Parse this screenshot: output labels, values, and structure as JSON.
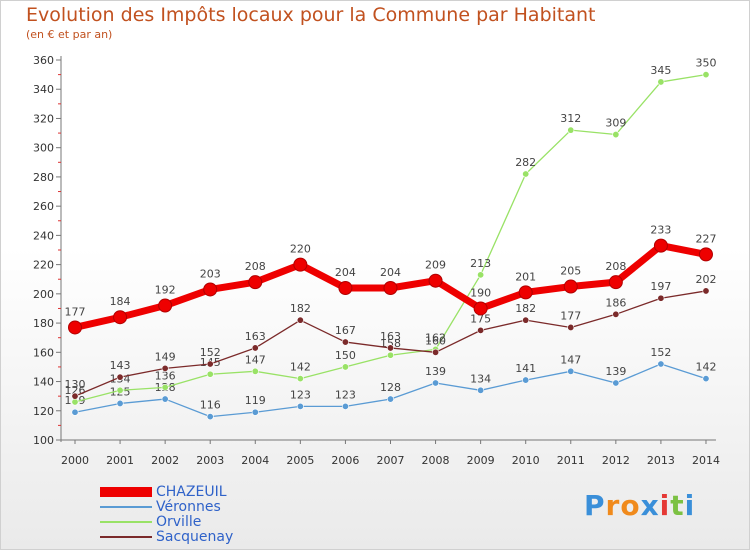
{
  "chart_data": {
    "type": "line",
    "title": "Evolution des Impôts locaux pour la Commune par Habitant",
    "subtitle": "(en € et par an)",
    "xlabel": "",
    "ylabel": "",
    "x": [
      "2000",
      "2001",
      "2002",
      "2003",
      "2004",
      "2005",
      "2006",
      "2007",
      "2008",
      "2009",
      "2010",
      "2011",
      "2012",
      "2013",
      "2014"
    ],
    "ylim": [
      100,
      360
    ],
    "yticks": [
      100,
      120,
      140,
      160,
      180,
      200,
      220,
      240,
      260,
      280,
      300,
      320,
      340,
      360
    ],
    "grid": false,
    "legend_position": "bottom-left",
    "series": [
      {
        "name": "CHAZEUIL",
        "color": "#ee0000",
        "emphasis": true,
        "values": [
          177,
          184,
          192,
          203,
          208,
          220,
          204,
          204,
          209,
          190,
          201,
          205,
          208,
          233,
          227
        ]
      },
      {
        "name": "Véronnes",
        "color": "#5a9bd4",
        "emphasis": false,
        "values": [
          119,
          125,
          128,
          116,
          119,
          123,
          123,
          128,
          139,
          134,
          141,
          147,
          139,
          152,
          142
        ]
      },
      {
        "name": "Orville",
        "color": "#99e266",
        "emphasis": false,
        "values": [
          126,
          134,
          136,
          145,
          147,
          142,
          150,
          158,
          162,
          213,
          282,
          312,
          309,
          345,
          350
        ]
      },
      {
        "name": "Sacquenay",
        "color": "#7b2a2a",
        "emphasis": false,
        "values": [
          130,
          143,
          149,
          152,
          163,
          182,
          167,
          163,
          160,
          175,
          182,
          177,
          186,
          197,
          202
        ]
      }
    ]
  },
  "branding": {
    "logo_text": "Proxiti",
    "logo_colors": [
      "#3a8fd9",
      "#f08a1c",
      "#f08a1c",
      "#3a8fd9",
      "#e53935",
      "#7cc143",
      "#3a8fd9"
    ]
  }
}
